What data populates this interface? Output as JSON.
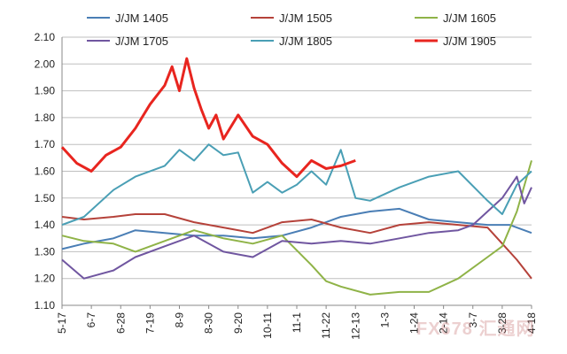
{
  "watermark": "FX678 汇通网",
  "chart_data": {
    "type": "line",
    "title": "",
    "xlabel": "",
    "ylabel": "",
    "ylim": [
      1.1,
      2.1
    ],
    "yticks": [
      "1.10",
      "1.20",
      "1.30",
      "1.40",
      "1.50",
      "1.60",
      "1.70",
      "1.80",
      "1.90",
      "2.00",
      "2.10"
    ],
    "x_tick_labels": [
      "5-17",
      "6-7",
      "6-28",
      "7-19",
      "8-9",
      "8-30",
      "9-20",
      "10-11",
      "11-1",
      "11-22",
      "12-13",
      "1-3",
      "1-24",
      "2-14",
      "3-7",
      "3-28",
      "4-18"
    ],
    "grid": "horizontal",
    "legend_position": "top",
    "series": [
      {
        "name": "J/JM 1405",
        "color": "#4a7eb5",
        "x": [
          0,
          3,
          7,
          10,
          14,
          18,
          22,
          26,
          30,
          34,
          38,
          42,
          46,
          50,
          54,
          58,
          61,
          64
        ],
        "values": [
          1.31,
          1.33,
          1.35,
          1.38,
          1.37,
          1.36,
          1.36,
          1.35,
          1.36,
          1.39,
          1.43,
          1.45,
          1.46,
          1.42,
          1.41,
          1.4,
          1.4,
          1.37
        ]
      },
      {
        "name": "J/JM 1505",
        "color": "#b5423a",
        "x": [
          0,
          3,
          7,
          10,
          14,
          18,
          22,
          26,
          30,
          34,
          38,
          42,
          46,
          50,
          54,
          58,
          60,
          62,
          64
        ],
        "values": [
          1.43,
          1.42,
          1.43,
          1.44,
          1.44,
          1.41,
          1.39,
          1.37,
          1.41,
          1.42,
          1.39,
          1.37,
          1.4,
          1.41,
          1.4,
          1.39,
          1.33,
          1.27,
          1.2
        ]
      },
      {
        "name": "J/JM 1605",
        "color": "#8fb347",
        "x": [
          0,
          3,
          7,
          10,
          14,
          18,
          22,
          26,
          30,
          34,
          36,
          38,
          42,
          46,
          50,
          54,
          58,
          60,
          62,
          64
        ],
        "values": [
          1.36,
          1.34,
          1.33,
          1.3,
          1.34,
          1.38,
          1.35,
          1.33,
          1.36,
          1.25,
          1.19,
          1.17,
          1.14,
          1.15,
          1.15,
          1.2,
          1.28,
          1.32,
          1.45,
          1.64
        ]
      },
      {
        "name": "J/JM 1705",
        "color": "#7056a0",
        "x": [
          0,
          3,
          7,
          10,
          14,
          18,
          22,
          26,
          30,
          34,
          38,
          42,
          46,
          50,
          54,
          56,
          58,
          60,
          62,
          63,
          64
        ],
        "values": [
          1.27,
          1.2,
          1.23,
          1.28,
          1.32,
          1.36,
          1.3,
          1.28,
          1.34,
          1.33,
          1.34,
          1.33,
          1.35,
          1.37,
          1.38,
          1.4,
          1.45,
          1.5,
          1.58,
          1.48,
          1.54
        ]
      },
      {
        "name": "J/JM 1805",
        "color": "#4a9fb5",
        "x": [
          0,
          3,
          7,
          10,
          14,
          16,
          18,
          20,
          22,
          24,
          26,
          28,
          30,
          32,
          34,
          36,
          38,
          40,
          42,
          46,
          50,
          54,
          58,
          60,
          62,
          64
        ],
        "values": [
          1.4,
          1.43,
          1.53,
          1.58,
          1.62,
          1.68,
          1.64,
          1.7,
          1.66,
          1.67,
          1.52,
          1.56,
          1.52,
          1.55,
          1.6,
          1.55,
          1.68,
          1.5,
          1.49,
          1.54,
          1.58,
          1.6,
          1.49,
          1.44,
          1.55,
          1.6
        ]
      },
      {
        "name": "J/JM 1905",
        "color": "#e8251f",
        "x": [
          0,
          2,
          4,
          6,
          8,
          10,
          12,
          14,
          15,
          16,
          17,
          18,
          19,
          20,
          21,
          22,
          24,
          26,
          28,
          30,
          32,
          34,
          36,
          38,
          40
        ],
        "values": [
          1.69,
          1.63,
          1.6,
          1.66,
          1.69,
          1.76,
          1.85,
          1.92,
          1.99,
          1.9,
          2.02,
          1.91,
          1.83,
          1.76,
          1.81,
          1.72,
          1.81,
          1.73,
          1.7,
          1.63,
          1.58,
          1.64,
          1.61,
          1.62,
          1.64
        ]
      }
    ]
  }
}
